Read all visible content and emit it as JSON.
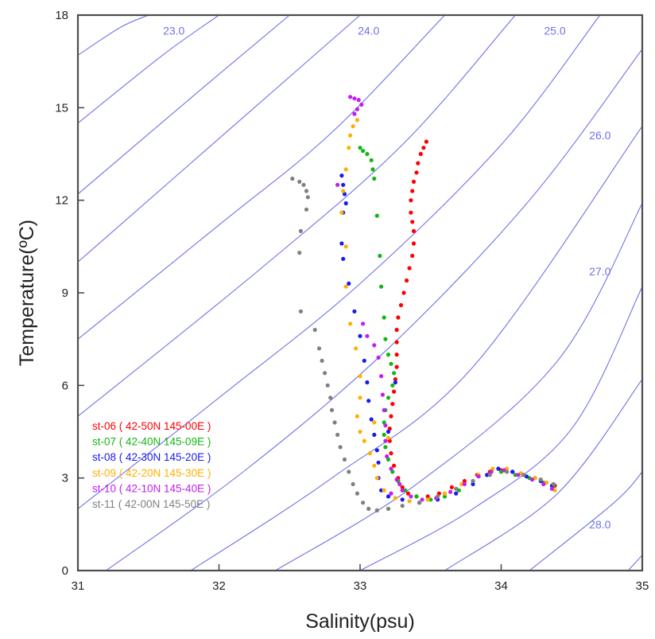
{
  "chart_data": {
    "type": "scatter",
    "xlabel": "Salinity(psu)",
    "ylabel": "Temperature(ºC)",
    "xlim": [
      31,
      35
    ],
    "ylim": [
      0,
      18
    ],
    "x_ticks": [
      "31",
      "32",
      "33",
      "34",
      "35"
    ],
    "y_ticks": [
      "0",
      "3",
      "6",
      "9",
      "12",
      "15",
      "18"
    ],
    "grid": false,
    "legend_position": "lower-left",
    "isopycnal_color": "#6f72e6",
    "isopycnals": [
      {
        "label": "23.0",
        "points": [
          [
            31.0,
            16.7
          ],
          [
            31.3,
            17.6
          ],
          [
            31.5,
            18.0
          ]
        ]
      },
      {
        "label": "",
        "points": [
          [
            31.0,
            14.5
          ],
          [
            31.6,
            16.7
          ],
          [
            32.0,
            18.0
          ]
        ]
      },
      {
        "label": "",
        "points": [
          [
            31.0,
            12.2
          ],
          [
            31.9,
            15.7
          ],
          [
            32.5,
            18.0
          ]
        ]
      },
      {
        "label": "",
        "points": [
          [
            31.0,
            10.0
          ],
          [
            32.2,
            14.8
          ],
          [
            33.0,
            18.0
          ]
        ]
      },
      {
        "label": "24.0",
        "points": [
          [
            31.0,
            7.5
          ],
          [
            32.0,
            11.2
          ],
          [
            32.8,
            14.2
          ],
          [
            33.6,
            18.0
          ]
        ]
      },
      {
        "label": "",
        "points": [
          [
            31.0,
            5.0
          ],
          [
            32.3,
            9.8
          ],
          [
            33.3,
            13.8
          ],
          [
            34.1,
            18.0
          ]
        ]
      },
      {
        "label": "",
        "points": [
          [
            31.0,
            2.0
          ],
          [
            32.0,
            5.6
          ],
          [
            33.0,
            9.3
          ],
          [
            34.0,
            13.8
          ],
          [
            34.7,
            18.0
          ]
        ]
      },
      {
        "label": "25.0",
        "points": [
          [
            31.2,
            0.0
          ],
          [
            32.2,
            3.3
          ],
          [
            33.2,
            7.2
          ],
          [
            34.2,
            12.0
          ],
          [
            35.0,
            16.9
          ]
        ]
      },
      {
        "label": "26.0",
        "points": [
          [
            31.8,
            0.0
          ],
          [
            32.8,
            3.0
          ],
          [
            33.8,
            6.6
          ],
          [
            35.0,
            14.4
          ]
        ]
      },
      {
        "label": "",
        "points": [
          [
            32.4,
            0.0
          ],
          [
            33.4,
            2.8
          ],
          [
            34.4,
            6.8
          ],
          [
            35.0,
            11.9
          ]
        ]
      },
      {
        "label": "27.0",
        "points": [
          [
            33.0,
            0.0
          ],
          [
            33.8,
            2.0
          ],
          [
            34.5,
            4.6
          ],
          [
            35.0,
            9.2
          ]
        ]
      },
      {
        "label": "",
        "points": [
          [
            33.6,
            0.0
          ],
          [
            34.4,
            2.5
          ],
          [
            35.0,
            6.2
          ]
        ]
      },
      {
        "label": "",
        "points": [
          [
            34.2,
            0.0
          ],
          [
            34.8,
            2.2
          ],
          [
            35.0,
            3.2
          ]
        ]
      },
      {
        "label": "28.0",
        "points": [
          [
            34.9,
            0.0
          ],
          [
            35.0,
            0.5
          ]
        ]
      }
    ],
    "isopycnal_labels": [
      {
        "text": "23.0",
        "s": 31.68,
        "t": 17.5
      },
      {
        "text": "24.0",
        "s": 33.06,
        "t": 17.5
      },
      {
        "text": "25.0",
        "s": 34.38,
        "t": 17.5
      },
      {
        "text": "26.0",
        "s": 34.7,
        "t": 14.1
      },
      {
        "text": "27.0",
        "s": 34.7,
        "t": 9.7
      },
      {
        "text": "28.0",
        "s": 34.7,
        "t": 1.5
      }
    ],
    "series": [
      {
        "name": "st-06 ( 42-50N 145-00E )",
        "color": "#ff0000",
        "points": [
          [
            33.47,
            13.9
          ],
          [
            33.45,
            13.7
          ],
          [
            33.43,
            13.5
          ],
          [
            33.41,
            13.2
          ],
          [
            33.4,
            12.9
          ],
          [
            33.38,
            12.6
          ],
          [
            33.37,
            12.3
          ],
          [
            33.36,
            12.0
          ],
          [
            33.36,
            11.6
          ],
          [
            33.37,
            11.3
          ],
          [
            33.38,
            11.0
          ],
          [
            33.38,
            10.6
          ],
          [
            33.37,
            10.2
          ],
          [
            33.35,
            9.8
          ],
          [
            33.33,
            9.4
          ],
          [
            33.31,
            9.0
          ],
          [
            33.29,
            8.6
          ],
          [
            33.27,
            8.2
          ],
          [
            33.26,
            7.8
          ],
          [
            33.26,
            7.4
          ],
          [
            33.26,
            7.0
          ],
          [
            33.26,
            6.6
          ],
          [
            33.25,
            6.2
          ],
          [
            33.24,
            5.8
          ],
          [
            33.23,
            5.4
          ],
          [
            33.22,
            5.0
          ],
          [
            33.21,
            4.6
          ],
          [
            33.21,
            4.2
          ],
          [
            33.22,
            3.8
          ],
          [
            33.24,
            3.4
          ],
          [
            33.27,
            3.0
          ],
          [
            33.3,
            2.7
          ],
          [
            33.34,
            2.5
          ],
          [
            33.4,
            2.4
          ],
          [
            33.48,
            2.4
          ],
          [
            33.56,
            2.5
          ],
          [
            33.65,
            2.7
          ],
          [
            33.74,
            2.9
          ],
          [
            33.83,
            3.1
          ],
          [
            33.92,
            3.2
          ],
          [
            34.0,
            3.25
          ],
          [
            34.08,
            3.2
          ],
          [
            34.16,
            3.1
          ],
          [
            34.24,
            3.0
          ],
          [
            34.32,
            2.85
          ],
          [
            34.38,
            2.75
          ]
        ]
      },
      {
        "name": "st-07 ( 42-40N 145-09E )",
        "color": "#13b613",
        "points": [
          [
            33.0,
            13.7
          ],
          [
            33.02,
            13.6
          ],
          [
            33.05,
            13.5
          ],
          [
            33.08,
            13.3
          ],
          [
            33.09,
            13.0
          ],
          [
            33.1,
            12.7
          ],
          [
            33.12,
            11.5
          ],
          [
            33.14,
            10.2
          ],
          [
            33.15,
            9.2
          ],
          [
            33.17,
            8.2
          ],
          [
            33.18,
            7.5
          ],
          [
            33.2,
            7.0
          ],
          [
            33.22,
            6.7
          ],
          [
            33.24,
            6.4
          ],
          [
            33.23,
            6.0
          ],
          [
            33.2,
            5.6
          ],
          [
            33.18,
            5.2
          ],
          [
            33.17,
            4.8
          ],
          [
            33.17,
            4.4
          ],
          [
            33.18,
            4.0
          ],
          [
            33.2,
            3.6
          ],
          [
            33.23,
            3.2
          ],
          [
            33.27,
            2.9
          ],
          [
            33.32,
            2.6
          ],
          [
            33.4,
            2.4
          ],
          [
            33.5,
            2.3
          ],
          [
            33.6,
            2.4
          ],
          [
            33.7,
            2.6
          ],
          [
            33.8,
            2.9
          ],
          [
            33.9,
            3.1
          ],
          [
            34.0,
            3.2
          ],
          [
            34.1,
            3.1
          ],
          [
            34.2,
            3.0
          ],
          [
            34.3,
            2.85
          ],
          [
            34.37,
            2.75
          ]
        ]
      },
      {
        "name": "st-08 ( 42-30N 145-20E )",
        "color": "#1a1aee",
        "points": [
          [
            32.87,
            12.8
          ],
          [
            32.88,
            12.5
          ],
          [
            32.89,
            12.2
          ],
          [
            32.9,
            11.9
          ],
          [
            32.88,
            11.6
          ],
          [
            32.87,
            10.6
          ],
          [
            32.88,
            10.1
          ],
          [
            32.92,
            9.3
          ],
          [
            32.96,
            8.4
          ],
          [
            33.0,
            7.6
          ],
          [
            33.03,
            6.8
          ],
          [
            33.05,
            6.1
          ],
          [
            33.06,
            5.5
          ],
          [
            33.08,
            4.9
          ],
          [
            33.1,
            4.4
          ],
          [
            33.12,
            3.9
          ],
          [
            33.13,
            3.5
          ],
          [
            33.13,
            3.0
          ],
          [
            33.15,
            2.6
          ],
          [
            33.2,
            2.4
          ],
          [
            33.3,
            2.3
          ],
          [
            33.42,
            2.2
          ],
          [
            33.55,
            2.3
          ],
          [
            33.68,
            2.5
          ],
          [
            33.8,
            2.8
          ],
          [
            33.9,
            3.1
          ],
          [
            33.98,
            3.3
          ],
          [
            34.08,
            3.2
          ],
          [
            34.18,
            3.05
          ],
          [
            34.28,
            2.9
          ],
          [
            34.36,
            2.75
          ],
          [
            33.25,
            6.1
          ],
          [
            33.2,
            4.5
          ]
        ]
      },
      {
        "name": "st-09 ( 42-20N 145-30E )",
        "color": "#ffb000",
        "points": [
          [
            32.98,
            14.6
          ],
          [
            32.95,
            14.4
          ],
          [
            32.93,
            14.1
          ],
          [
            32.92,
            13.7
          ],
          [
            32.9,
            13.0
          ],
          [
            32.88,
            12.3
          ],
          [
            32.87,
            11.6
          ],
          [
            32.9,
            10.5
          ],
          [
            32.9,
            9.2
          ],
          [
            32.93,
            8.0
          ],
          [
            32.97,
            7.2
          ],
          [
            33.0,
            6.3
          ],
          [
            33.0,
            5.6
          ],
          [
            32.98,
            5.0
          ],
          [
            33.0,
            4.5
          ],
          [
            33.03,
            4.2
          ],
          [
            33.07,
            3.8
          ],
          [
            33.1,
            3.4
          ],
          [
            33.12,
            3.0
          ],
          [
            33.17,
            2.6
          ],
          [
            33.25,
            2.35
          ],
          [
            33.35,
            2.25
          ],
          [
            33.48,
            2.3
          ],
          [
            33.6,
            2.5
          ],
          [
            33.72,
            2.8
          ],
          [
            33.84,
            3.1
          ],
          [
            33.94,
            3.3
          ],
          [
            34.04,
            3.3
          ],
          [
            34.14,
            3.15
          ],
          [
            34.24,
            3.0
          ],
          [
            34.32,
            2.85
          ],
          [
            34.38,
            2.6
          ],
          [
            33.1,
            4.8
          ],
          [
            33.2,
            4.3
          ]
        ]
      },
      {
        "name": "st-10 ( 42-10N 145-40E )",
        "color": "#c21ef0",
        "points": [
          [
            32.93,
            15.35
          ],
          [
            32.96,
            15.3
          ],
          [
            32.99,
            15.25
          ],
          [
            33.01,
            15.1
          ],
          [
            32.98,
            14.95
          ],
          [
            32.96,
            14.8
          ],
          [
            32.84,
            12.5
          ],
          [
            33.02,
            8.0
          ],
          [
            33.05,
            7.6
          ],
          [
            33.1,
            7.3
          ],
          [
            33.13,
            6.9
          ],
          [
            33.15,
            6.3
          ],
          [
            33.16,
            5.7
          ],
          [
            33.17,
            5.2
          ],
          [
            33.18,
            4.7
          ],
          [
            33.18,
            4.2
          ],
          [
            33.19,
            3.7
          ],
          [
            33.22,
            3.3
          ],
          [
            33.26,
            2.95
          ],
          [
            33.3,
            2.6
          ],
          [
            33.36,
            2.4
          ],
          [
            33.44,
            2.3
          ],
          [
            33.54,
            2.35
          ],
          [
            33.64,
            2.55
          ],
          [
            33.74,
            2.8
          ],
          [
            33.84,
            3.05
          ],
          [
            33.93,
            3.2
          ],
          [
            34.02,
            3.25
          ],
          [
            34.12,
            3.1
          ],
          [
            34.22,
            2.95
          ],
          [
            34.3,
            2.8
          ],
          [
            34.36,
            2.65
          ],
          [
            33.28,
            2.8
          ],
          [
            33.22,
            2.5
          ]
        ]
      },
      {
        "name": "st-11 ( 42-00N 145-50E )",
        "color": "#808080",
        "points": [
          [
            32.52,
            12.7
          ],
          [
            32.57,
            12.6
          ],
          [
            32.6,
            12.5
          ],
          [
            32.62,
            12.3
          ],
          [
            32.63,
            12.1
          ],
          [
            32.62,
            11.7
          ],
          [
            32.58,
            11.0
          ],
          [
            32.57,
            10.3
          ],
          [
            32.58,
            8.4
          ],
          [
            32.68,
            7.8
          ],
          [
            32.71,
            7.2
          ],
          [
            32.73,
            6.8
          ],
          [
            32.75,
            6.4
          ],
          [
            32.77,
            6.0
          ],
          [
            32.79,
            5.6
          ],
          [
            32.8,
            5.2
          ],
          [
            32.82,
            4.8
          ],
          [
            32.84,
            4.4
          ],
          [
            32.86,
            4.0
          ],
          [
            32.89,
            3.6
          ],
          [
            32.92,
            3.2
          ],
          [
            32.95,
            2.8
          ],
          [
            32.98,
            2.5
          ],
          [
            33.02,
            2.2
          ],
          [
            33.06,
            2.0
          ],
          [
            33.12,
            1.95
          ],
          [
            33.2,
            2.0
          ],
          [
            33.3,
            2.1
          ],
          [
            33.42,
            2.2
          ],
          [
            33.55,
            2.4
          ],
          [
            33.68,
            2.65
          ],
          [
            33.8,
            2.9
          ],
          [
            33.92,
            3.1
          ],
          [
            34.04,
            3.2
          ],
          [
            34.16,
            3.1
          ],
          [
            34.28,
            2.95
          ],
          [
            34.37,
            2.8
          ]
        ]
      }
    ]
  }
}
